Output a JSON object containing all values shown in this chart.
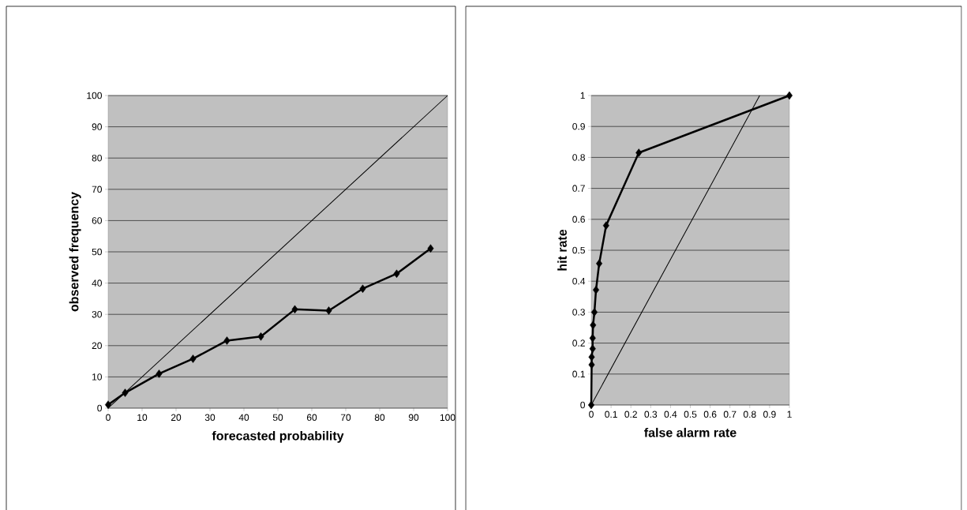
{
  "chart_data": [
    {
      "type": "line",
      "xlabel": "forecasted probability",
      "ylabel": "observed frequency",
      "xlim": [
        0,
        100
      ],
      "ylim": [
        0,
        100
      ],
      "xticks": [
        0,
        10,
        20,
        30,
        40,
        50,
        60,
        70,
        80,
        90,
        100
      ],
      "yticks": [
        0,
        10,
        20,
        30,
        40,
        50,
        60,
        70,
        80,
        90,
        100
      ],
      "grid": "y",
      "series": [
        {
          "color": "#000000",
          "marker": "diamond",
          "x": [
            0,
            5,
            15,
            25,
            35,
            45,
            55,
            65,
            75,
            85,
            95
          ],
          "values": [
            1.1,
            4.9,
            11,
            15.8,
            21.6,
            22.9,
            31.6,
            31.2,
            38.2,
            43,
            51.1
          ]
        },
        {
          "color": "#000000",
          "marker": "none",
          "x": [
            0,
            100
          ],
          "values": [
            0,
            100
          ]
        }
      ]
    },
    {
      "type": "line",
      "xlabel": "false alarm rate",
      "ylabel": "hit rate",
      "xlim": [
        0,
        1
      ],
      "ylim": [
        0,
        1
      ],
      "xticks": [
        0,
        0.1,
        0.2,
        0.3,
        0.4,
        0.5,
        0.6,
        0.7,
        0.8,
        0.9,
        1
      ],
      "yticks": [
        0,
        0.1,
        0.2,
        0.3,
        0.4,
        0.5,
        0.6,
        0.7,
        0.8,
        0.9,
        1
      ],
      "grid": "y",
      "series": [
        {
          "color": "#000000",
          "marker": "diamond",
          "x": [
            0,
            0.002,
            0.002,
            0.007,
            0.007,
            0.009,
            0.016,
            0.024,
            0.04,
            0.075,
            0.24,
            1
          ],
          "values": [
            0,
            0.13,
            0.155,
            0.182,
            0.216,
            0.258,
            0.3,
            0.372,
            0.457,
            0.58,
            0.815,
            1
          ]
        },
        {
          "color": "#000000",
          "marker": "none",
          "x": [
            0,
            0.85
          ],
          "values": [
            0,
            1
          ]
        }
      ]
    }
  ]
}
